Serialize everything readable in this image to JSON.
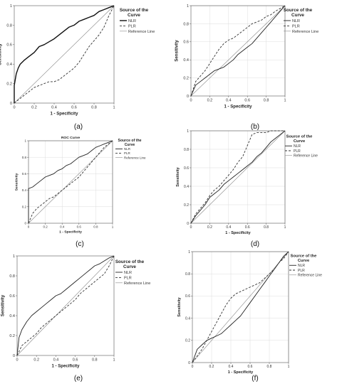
{
  "figure_panels": [
    "(a)",
    "(b)",
    "(c)",
    "(d)",
    "(e)",
    "(f)"
  ],
  "chart_data": [
    {
      "type": "line",
      "panel": "(a)",
      "title": "",
      "xlabel": "1 - Specificity",
      "ylabel": "Sensitivity",
      "xlim": [
        0,
        1
      ],
      "ylim": [
        0,
        1
      ],
      "ticks": [
        0.0,
        0.2,
        0.4,
        0.6,
        0.8,
        1.0
      ],
      "grid": false,
      "legend_title": "Source of the Curve",
      "legend_position": "right",
      "series": [
        {
          "name": "NLR",
          "style": "solid-bold",
          "x": [
            0,
            0,
            0.02,
            0.04,
            0.06,
            0.1,
            0.15,
            0.2,
            0.25,
            0.3,
            0.35,
            0.4,
            0.45,
            0.5,
            0.55,
            0.6,
            0.65,
            0.7,
            0.75,
            0.8,
            0.85,
            0.9,
            0.95,
            1.0
          ],
          "y": [
            0,
            0.18,
            0.3,
            0.36,
            0.4,
            0.44,
            0.48,
            0.52,
            0.58,
            0.6,
            0.63,
            0.66,
            0.7,
            0.74,
            0.78,
            0.8,
            0.84,
            0.86,
            0.88,
            0.9,
            0.94,
            0.96,
            0.98,
            1.0
          ]
        },
        {
          "name": "PLR",
          "style": "dashed",
          "x": [
            0,
            0.05,
            0.1,
            0.15,
            0.2,
            0.25,
            0.3,
            0.35,
            0.4,
            0.45,
            0.5,
            0.55,
            0.6,
            0.65,
            0.7,
            0.75,
            0.8,
            0.85,
            0.9,
            0.95,
            1.0
          ],
          "y": [
            0,
            0.04,
            0.08,
            0.12,
            0.16,
            0.18,
            0.2,
            0.22,
            0.22,
            0.24,
            0.28,
            0.32,
            0.36,
            0.42,
            0.5,
            0.58,
            0.64,
            0.7,
            0.78,
            0.9,
            1.0
          ]
        },
        {
          "name": "Reference Line",
          "style": "reference",
          "x": [
            0,
            1
          ],
          "y": [
            0,
            1
          ]
        }
      ]
    },
    {
      "type": "line",
      "panel": "(b)",
      "title": "",
      "xlabel": "1 - Specificity",
      "ylabel": "Sensitivity",
      "xlim": [
        0,
        1
      ],
      "ylim": [
        0,
        1
      ],
      "ticks": [
        0.0,
        0.2,
        0.4,
        0.6,
        0.8,
        1.0
      ],
      "grid": true,
      "legend_title": "Source of the Curve",
      "legend_position": "right",
      "series": [
        {
          "name": "NLR",
          "style": "solid",
          "x": [
            0,
            0.05,
            0.1,
            0.15,
            0.2,
            0.25,
            0.3,
            0.35,
            0.4,
            0.45,
            0.5,
            0.55,
            0.6,
            0.65,
            0.7,
            0.75,
            0.8,
            0.85,
            0.9,
            0.95,
            1.0
          ],
          "y": [
            0,
            0.12,
            0.16,
            0.2,
            0.24,
            0.28,
            0.3,
            0.32,
            0.36,
            0.4,
            0.46,
            0.5,
            0.54,
            0.58,
            0.64,
            0.7,
            0.76,
            0.82,
            0.88,
            0.94,
            1.0
          ]
        },
        {
          "name": "PLR",
          "style": "dashed",
          "x": [
            0,
            0.05,
            0.1,
            0.15,
            0.2,
            0.25,
            0.3,
            0.35,
            0.4,
            0.45,
            0.5,
            0.55,
            0.6,
            0.65,
            0.7,
            0.75,
            0.8,
            0.85,
            0.9,
            0.95,
            1.0
          ],
          "y": [
            0,
            0.16,
            0.22,
            0.28,
            0.36,
            0.44,
            0.52,
            0.58,
            0.62,
            0.64,
            0.68,
            0.72,
            0.76,
            0.8,
            0.82,
            0.84,
            0.88,
            0.9,
            0.94,
            0.97,
            1.0
          ]
        },
        {
          "name": "Reference Line",
          "style": "reference",
          "x": [
            0,
            1
          ],
          "y": [
            0,
            1
          ]
        }
      ]
    },
    {
      "type": "line",
      "panel": "(c)",
      "title": "ROC Curve",
      "xlabel": "1 - Specificity",
      "ylabel": "Sensitivity",
      "xlim": [
        0,
        1
      ],
      "ylim": [
        0,
        1
      ],
      "ticks": [
        0.0,
        0.2,
        0.4,
        0.6,
        0.8,
        1.0
      ],
      "grid": true,
      "legend_title": "Source of the Curve",
      "legend_position": "right",
      "series": [
        {
          "name": "NLR",
          "style": "solid",
          "x": [
            0,
            0,
            0.05,
            0.1,
            0.15,
            0.2,
            0.25,
            0.3,
            0.35,
            0.4,
            0.45,
            0.5,
            0.55,
            0.6,
            0.65,
            0.7,
            0.75,
            0.8,
            0.85,
            0.9,
            0.95,
            1.0
          ],
          "y": [
            0,
            0.42,
            0.44,
            0.48,
            0.52,
            0.56,
            0.58,
            0.6,
            0.64,
            0.66,
            0.7,
            0.72,
            0.76,
            0.8,
            0.82,
            0.84,
            0.88,
            0.92,
            0.94,
            0.96,
            0.98,
            1.0
          ]
        },
        {
          "name": "PLR",
          "style": "dashed",
          "x": [
            0,
            0.05,
            0.1,
            0.15,
            0.2,
            0.25,
            0.3,
            0.35,
            0.4,
            0.45,
            0.5,
            0.55,
            0.6,
            0.65,
            0.7,
            0.75,
            0.8,
            0.85,
            0.9,
            0.95,
            1.0
          ],
          "y": [
            0,
            0.12,
            0.18,
            0.22,
            0.26,
            0.3,
            0.32,
            0.36,
            0.4,
            0.44,
            0.48,
            0.52,
            0.56,
            0.62,
            0.68,
            0.74,
            0.8,
            0.86,
            0.92,
            0.96,
            1.0
          ]
        },
        {
          "name": "Reference Line",
          "style": "reference",
          "x": [
            0,
            1
          ],
          "y": [
            0,
            1
          ]
        }
      ]
    },
    {
      "type": "line",
      "panel": "(d)",
      "title": "",
      "xlabel": "1 - Specificity",
      "ylabel": "Sensitivity",
      "xlim": [
        0,
        1
      ],
      "ylim": [
        0,
        1
      ],
      "ticks": [
        0.0,
        0.2,
        0.4,
        0.6,
        0.8,
        1.0
      ],
      "grid": true,
      "legend_title": "Source of the Curve",
      "legend_position": "right",
      "series": [
        {
          "name": "NLR",
          "style": "solid",
          "x": [
            0,
            0.05,
            0.1,
            0.15,
            0.2,
            0.25,
            0.3,
            0.35,
            0.4,
            0.45,
            0.5,
            0.55,
            0.6,
            0.65,
            0.7,
            0.75,
            0.8,
            0.85,
            0.9,
            0.95,
            1.0
          ],
          "y": [
            0,
            0.08,
            0.14,
            0.2,
            0.28,
            0.32,
            0.36,
            0.42,
            0.46,
            0.5,
            0.54,
            0.58,
            0.62,
            0.66,
            0.72,
            0.76,
            0.82,
            0.88,
            0.92,
            0.96,
            1.0
          ]
        },
        {
          "name": "PLR",
          "style": "dashed",
          "x": [
            0,
            0.05,
            0.1,
            0.15,
            0.2,
            0.25,
            0.3,
            0.35,
            0.4,
            0.45,
            0.5,
            0.55,
            0.6,
            0.65,
            0.7,
            0.75,
            0.8,
            0.85,
            0.9,
            0.95,
            1.0
          ],
          "y": [
            0,
            0.1,
            0.16,
            0.22,
            0.3,
            0.36,
            0.4,
            0.46,
            0.52,
            0.58,
            0.66,
            0.72,
            0.84,
            0.96,
            0.98,
            0.98,
            0.98,
            1.0,
            1.0,
            1.0,
            1.0
          ]
        },
        {
          "name": "Reference Line",
          "style": "reference",
          "x": [
            0,
            1
          ],
          "y": [
            0,
            1
          ]
        }
      ]
    },
    {
      "type": "line",
      "panel": "(e)",
      "title": "",
      "xlabel": "1 - Specificity",
      "ylabel": "Sensitivity",
      "xlim": [
        0,
        1
      ],
      "ylim": [
        0,
        1
      ],
      "ticks": [
        0.0,
        0.2,
        0.4,
        0.6,
        0.8,
        1.0
      ],
      "grid": false,
      "legend_title": "Source of the Curve",
      "legend_position": "right",
      "series": [
        {
          "name": "NLR",
          "style": "solid",
          "x": [
            0,
            0.02,
            0.05,
            0.1,
            0.15,
            0.2,
            0.25,
            0.3,
            0.35,
            0.4,
            0.45,
            0.5,
            0.55,
            0.6,
            0.65,
            0.7,
            0.75,
            0.8,
            0.85,
            0.9,
            0.95,
            1.0
          ],
          "y": [
            0,
            0.18,
            0.26,
            0.34,
            0.4,
            0.44,
            0.48,
            0.52,
            0.56,
            0.6,
            0.62,
            0.66,
            0.7,
            0.74,
            0.78,
            0.82,
            0.86,
            0.9,
            0.92,
            0.95,
            0.98,
            1.0
          ]
        },
        {
          "name": "PLR",
          "style": "dashed",
          "x": [
            0,
            0.05,
            0.1,
            0.15,
            0.2,
            0.25,
            0.3,
            0.35,
            0.4,
            0.45,
            0.5,
            0.55,
            0.6,
            0.65,
            0.7,
            0.75,
            0.8,
            0.85,
            0.9,
            0.95,
            1.0
          ],
          "y": [
            0,
            0.1,
            0.14,
            0.18,
            0.22,
            0.28,
            0.32,
            0.36,
            0.4,
            0.44,
            0.48,
            0.52,
            0.56,
            0.62,
            0.66,
            0.7,
            0.74,
            0.78,
            0.82,
            0.9,
            1.0
          ]
        },
        {
          "name": "Reference Line",
          "style": "reference",
          "x": [
            0,
            1
          ],
          "y": [
            0,
            1
          ]
        }
      ]
    },
    {
      "type": "line",
      "panel": "(f)",
      "title": "",
      "xlabel": "1 - Specificity",
      "ylabel": "Sensitivity",
      "xlim": [
        0,
        1
      ],
      "ylim": [
        0,
        1
      ],
      "ticks": [
        0.0,
        0.2,
        0.4,
        0.6,
        0.8,
        1.0
      ],
      "grid": true,
      "legend_title": "Source of the Curve",
      "legend_position": "right",
      "series": [
        {
          "name": "NLR",
          "style": "solid",
          "x": [
            0,
            0.05,
            0.1,
            0.15,
            0.2,
            0.25,
            0.3,
            0.35,
            0.4,
            0.45,
            0.5,
            0.55,
            0.6,
            0.65,
            0.7,
            0.75,
            0.8,
            0.85,
            0.9,
            0.95,
            1.0
          ],
          "y": [
            0,
            0.12,
            0.16,
            0.2,
            0.22,
            0.24,
            0.26,
            0.3,
            0.34,
            0.38,
            0.42,
            0.48,
            0.54,
            0.6,
            0.66,
            0.72,
            0.78,
            0.84,
            0.9,
            0.96,
            1.0
          ]
        },
        {
          "name": "PLR",
          "style": "dashed",
          "x": [
            0,
            0.05,
            0.1,
            0.15,
            0.2,
            0.25,
            0.3,
            0.35,
            0.4,
            0.45,
            0.5,
            0.55,
            0.6,
            0.65,
            0.7,
            0.75,
            0.8,
            0.85,
            0.9,
            0.95,
            1.0
          ],
          "y": [
            0,
            0.06,
            0.12,
            0.2,
            0.28,
            0.36,
            0.44,
            0.52,
            0.58,
            0.62,
            0.64,
            0.66,
            0.68,
            0.7,
            0.72,
            0.76,
            0.8,
            0.84,
            0.9,
            0.94,
            1.0
          ]
        },
        {
          "name": "Reference Line",
          "style": "reference",
          "x": [
            0,
            1
          ],
          "y": [
            0,
            1
          ]
        }
      ]
    }
  ]
}
